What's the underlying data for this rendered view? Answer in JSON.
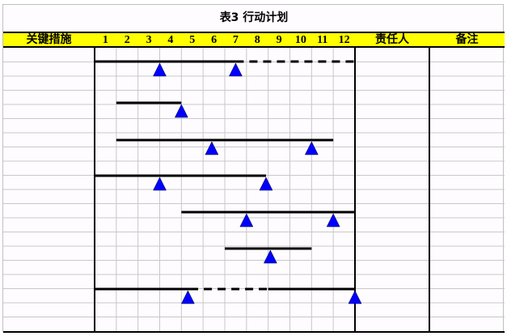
{
  "title": "表3 行动计划",
  "header": {
    "measures": "关键措施",
    "months": [
      "1",
      "2",
      "3",
      "4",
      "5",
      "6",
      "7",
      "8",
      "9",
      "10",
      "11",
      "12"
    ],
    "owner": "责任人",
    "remarks": "备注"
  },
  "colors": {
    "header_bg": "#ffff00",
    "milestone": "#0000ff",
    "bar": "#000000",
    "grid": "#c8c8c8"
  },
  "chart_data": {
    "type": "gantt",
    "x_unit": "month",
    "xlim": [
      0,
      12
    ],
    "tasks": [
      {
        "segments": [
          {
            "from": 0,
            "to": 6.5,
            "style": "solid"
          },
          {
            "from": 6.5,
            "to": 12,
            "style": "dashed"
          }
        ],
        "milestones": [
          3,
          6.5
        ]
      },
      {
        "segments": [
          {
            "from": 1,
            "to": 4,
            "style": "solid"
          }
        ],
        "milestones": [
          4
        ]
      },
      {
        "segments": [
          {
            "from": 1,
            "to": 11,
            "style": "solid"
          }
        ],
        "milestones": [
          5.4,
          10
        ]
      },
      {
        "segments": [
          {
            "from": 0,
            "to": 7.9,
            "style": "solid"
          }
        ],
        "milestones": [
          3,
          7.9
        ]
      },
      {
        "segments": [
          {
            "from": 4,
            "to": 12,
            "style": "solid"
          }
        ],
        "milestones": [
          7,
          11
        ]
      },
      {
        "segments": [
          {
            "from": 6,
            "to": 10,
            "style": "solid"
          }
        ],
        "milestones": [
          8.1
        ]
      },
      {
        "segments": [
          {
            "from": 0,
            "to": 4.4,
            "style": "solid"
          },
          {
            "from": 4.4,
            "to": 8,
            "style": "dashed"
          },
          {
            "from": 8,
            "to": 12,
            "style": "solid"
          }
        ],
        "milestones": [
          4.3,
          12
        ]
      }
    ]
  }
}
